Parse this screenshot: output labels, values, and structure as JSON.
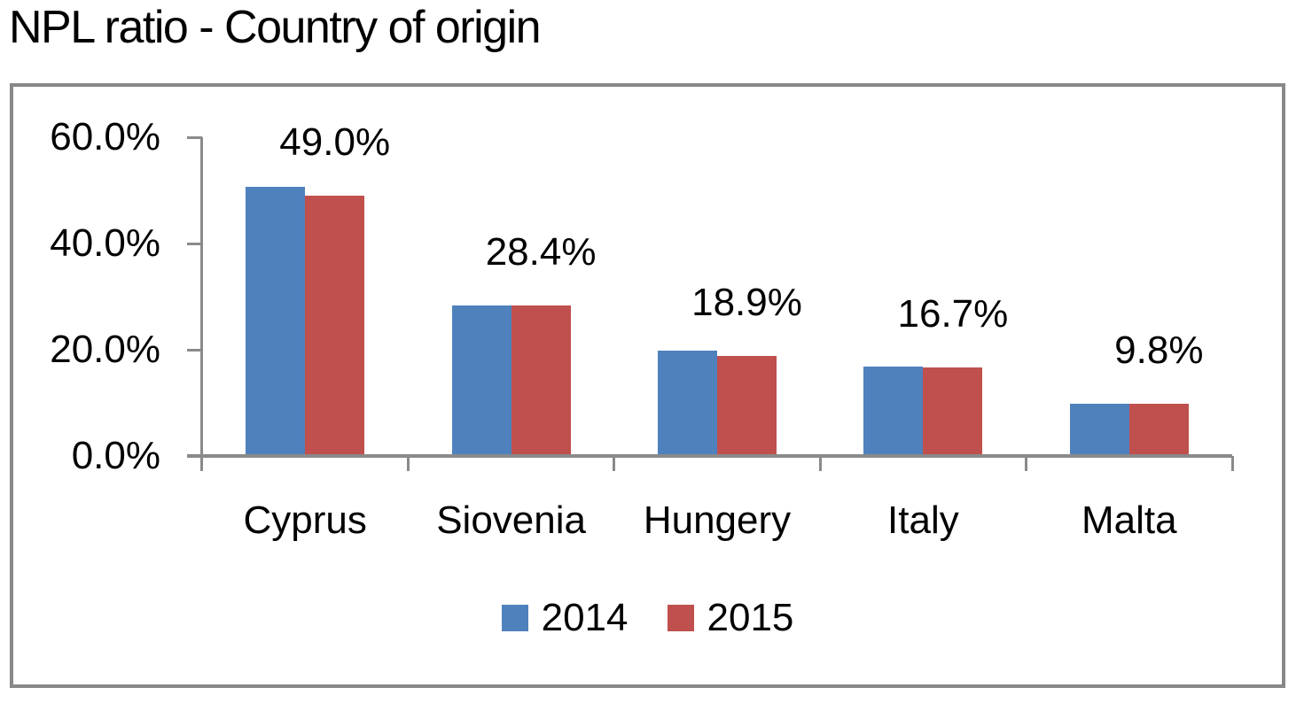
{
  "title": "NPL ratio - Country of origin",
  "chart_data": {
    "type": "bar",
    "title": "NPL ratio - Country of origin",
    "categories": [
      "Cyprus",
      "Siovenia",
      "Hungery",
      "Italy",
      "Malta"
    ],
    "series": [
      {
        "name": "2014",
        "color": "#4F81BD",
        "values": [
          50.6,
          28.4,
          19.9,
          16.8,
          9.8
        ]
      },
      {
        "name": "2015",
        "color": "#C0504D",
        "values": [
          49.0,
          28.4,
          18.9,
          16.7,
          9.8
        ]
      }
    ],
    "data_labels": [
      "49.0%",
      "28.4%",
      "18.9%",
      "16.7%",
      "9.8%"
    ],
    "data_labels_series": "2015",
    "y_axis": {
      "min": 0,
      "max": 60,
      "ticks": [
        {
          "label": "60.0%",
          "value": 60
        },
        {
          "label": "40.0%",
          "value": 40
        },
        {
          "label": "20.0%",
          "value": 20
        },
        {
          "label": "0.0%",
          "value": 0
        }
      ]
    },
    "xlabel": "",
    "ylabel": "",
    "grid": false,
    "legend_position": "bottom",
    "axis_color": "#8a8a8a",
    "frame_border_color": "#888888"
  }
}
